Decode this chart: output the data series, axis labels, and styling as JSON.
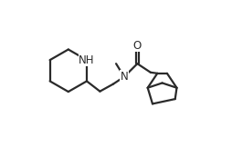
{
  "bg_color": "#ffffff",
  "line_color": "#2a2a2a",
  "line_width": 1.6,
  "font_size": 8.5,
  "figsize": [
    2.54,
    1.62
  ],
  "dpi": 100,
  "xlim": [
    0.0,
    1.0
  ],
  "ylim": [
    0.0,
    1.0
  ]
}
